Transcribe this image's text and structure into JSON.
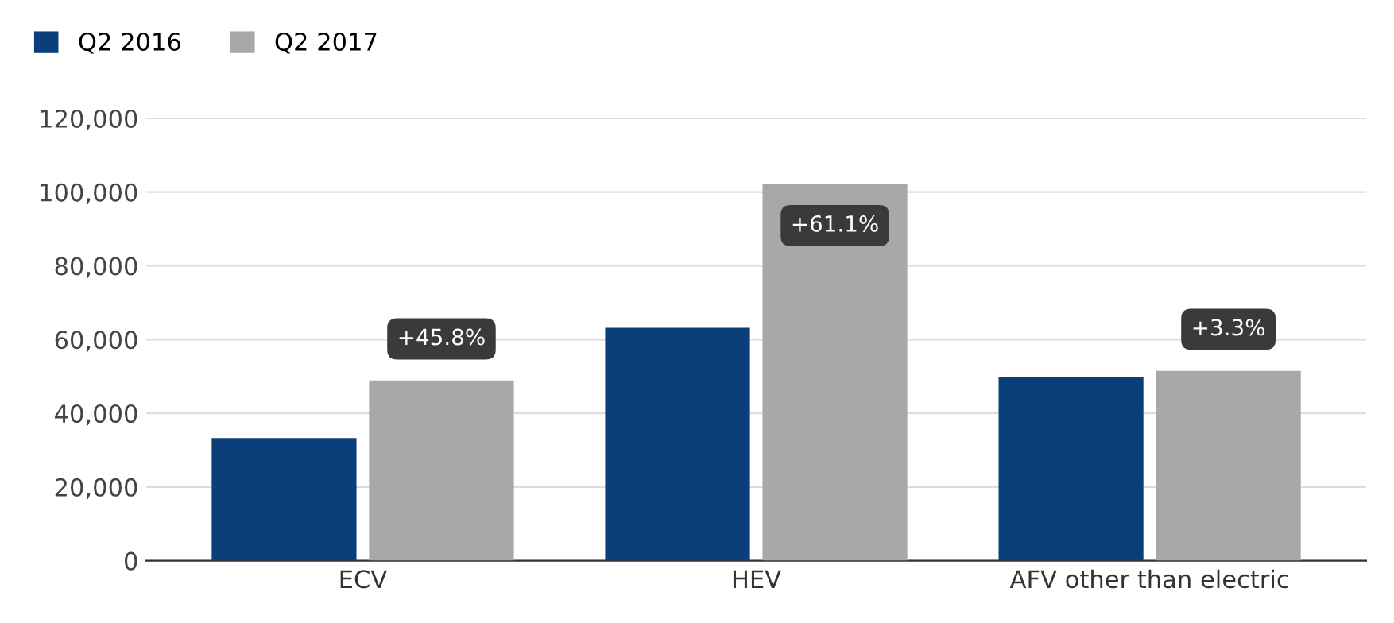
{
  "chart_data": {
    "type": "bar",
    "categories": [
      "ECV",
      "HEV",
      "AFV other than electric"
    ],
    "series": [
      {
        "name": "Q2 2016",
        "color": "#0b3f7a",
        "values": [
          33300,
          63200,
          49800
        ]
      },
      {
        "name": "Q2 2017",
        "color": "#a7a8aa",
        "values": [
          48900,
          102200,
          51500
        ]
      }
    ],
    "ylim": [
      0,
      120000
    ],
    "yticks": [
      {
        "value": 0,
        "label": "0"
      },
      {
        "value": 20000,
        "label": "20,000"
      },
      {
        "value": 40000,
        "label": "40,000"
      },
      {
        "value": 60000,
        "label": "60,000"
      },
      {
        "value": 80000,
        "label": "80,000"
      },
      {
        "value": 100000,
        "label": "100,000"
      },
      {
        "value": 120000,
        "label": "120,000"
      }
    ],
    "grid": "y",
    "legend": "top left",
    "annotations": [
      {
        "text": "+45.8%",
        "x": "ECV",
        "y": 48900
      },
      {
        "text": "+61.1%",
        "x": "HEV",
        "y": 102200
      },
      {
        "text": "+3.3%",
        "x": "AFV other than electric",
        "y": 51500
      }
    ]
  }
}
